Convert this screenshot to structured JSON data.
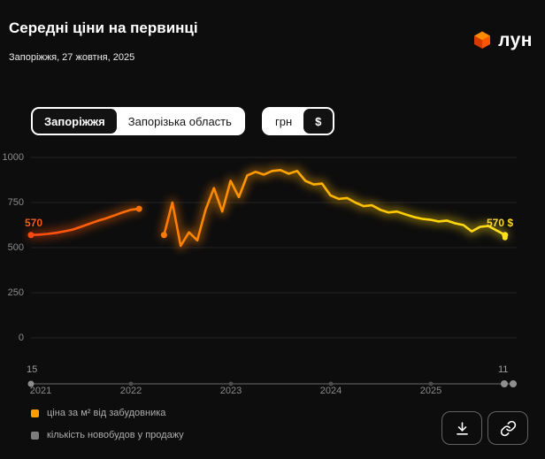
{
  "header": {
    "title": "Середні ціни на первинці",
    "subtitle": "Запоріжжя, 27 жовтня, 2025",
    "logo_text": "лун"
  },
  "controls": {
    "region_options": [
      "Запоріжжя",
      "Запорізька область"
    ],
    "region_selected": "Запоріжжя",
    "currency_options": [
      "грн",
      "$"
    ],
    "currency_selected": "$"
  },
  "chart_data": {
    "type": "line",
    "title": "Середні ціни на первинці",
    "x_start_month": "2021-01",
    "x_end_month": "2025-10",
    "x_years": [
      "2021",
      "2022",
      "2023",
      "2024",
      "2025"
    ],
    "ylim": [
      0,
      1000
    ],
    "yticks": [
      0,
      250,
      500,
      750,
      1000
    ],
    "grid": true,
    "series": [
      {
        "name": "ціна за м² від забудовника",
        "unit": "$",
        "color_gradient": [
          "#ff4a10",
          "#ff6d00",
          "#ff8c00",
          "#ffae00",
          "#ffd000",
          "#ffdf20"
        ],
        "values": [
          570,
          572,
          576,
          582,
          590,
          600,
          615,
          632,
          648,
          662,
          678,
          695,
          710,
          715,
          null,
          null,
          570,
          750,
          510,
          585,
          540,
          710,
          830,
          700,
          870,
          780,
          900,
          920,
          905,
          925,
          930,
          910,
          925,
          870,
          850,
          855,
          790,
          770,
          775,
          750,
          730,
          735,
          710,
          695,
          700,
          685,
          670,
          660,
          655,
          645,
          650,
          635,
          625,
          590,
          615,
          620,
          595,
          570
        ]
      }
    ],
    "start_label": "570",
    "start_label_color": "#ff5715",
    "end_label": "570 $",
    "end_label_color": "#ffd92a",
    "counts_label_start": "15",
    "counts_label_end": "11"
  },
  "legend": [
    {
      "label": "ціна за м² від забудовника",
      "color": "#ff9d00"
    },
    {
      "label": "кількість новобудов у продажу",
      "color": "#7d7d7d"
    }
  ]
}
